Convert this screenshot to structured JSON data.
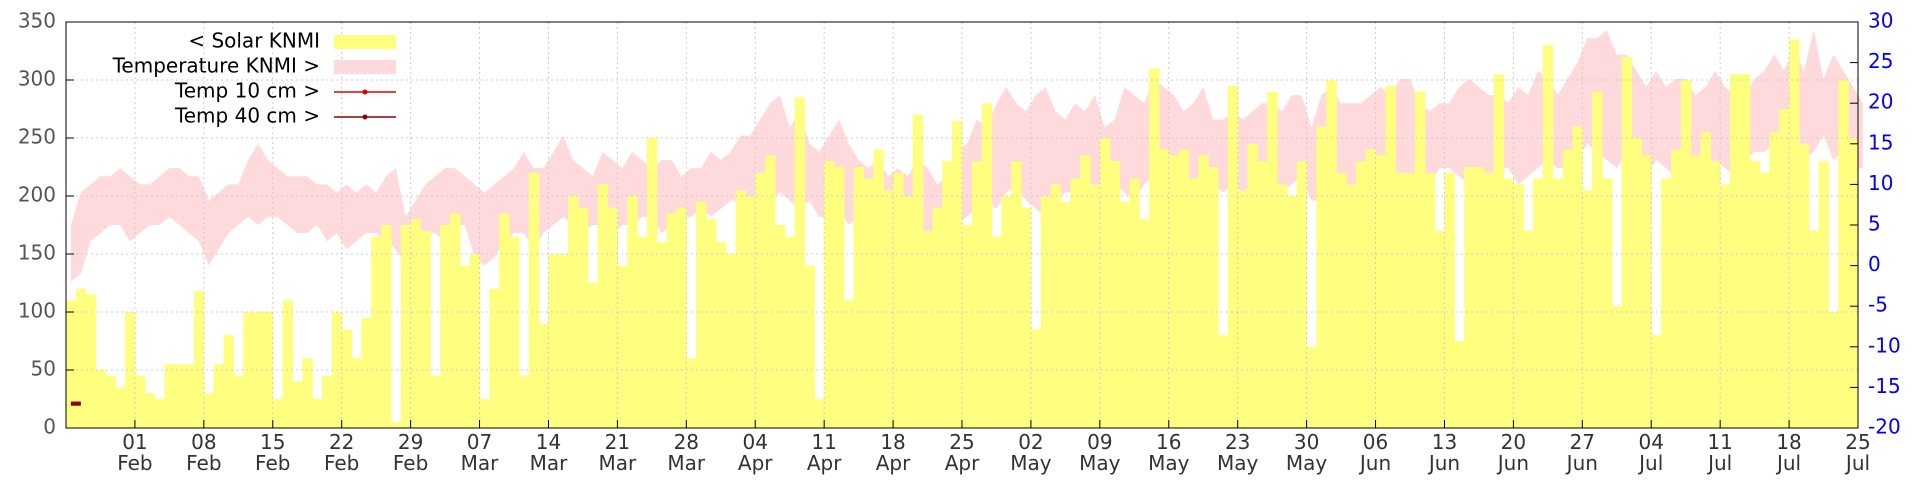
{
  "chart_data": {
    "type": "bar",
    "ylim": [
      0,
      350
    ],
    "yticks": [
      0,
      50,
      100,
      150,
      200,
      250,
      300,
      350
    ],
    "y2lim": [
      -20,
      30
    ],
    "y2ticks": [
      -20,
      -15,
      -10,
      -5,
      0,
      5,
      10,
      15,
      20,
      25,
      30
    ],
    "grid": true,
    "legend": "top-left",
    "categories": [
      null,
      null,
      null,
      null,
      null,
      null,
      null,
      "01 Feb",
      null,
      null,
      null,
      null,
      null,
      null,
      "08 Feb",
      null,
      null,
      null,
      null,
      null,
      null,
      "15 Feb",
      null,
      null,
      null,
      null,
      null,
      null,
      "22 Feb",
      null,
      null,
      null,
      null,
      null,
      null,
      "29 Feb",
      null,
      null,
      null,
      null,
      null,
      null,
      "07 Mar",
      null,
      null,
      null,
      null,
      null,
      null,
      "14 Mar",
      null,
      null,
      null,
      null,
      null,
      null,
      "21 Mar",
      null,
      null,
      null,
      null,
      null,
      null,
      "28 Mar",
      null,
      null,
      null,
      null,
      null,
      null,
      "04 Apr",
      null,
      null,
      null,
      null,
      null,
      null,
      "11 Apr",
      null,
      null,
      null,
      null,
      null,
      null,
      "18 Apr",
      null,
      null,
      null,
      null,
      null,
      null,
      "25 Apr",
      null,
      null,
      null,
      null,
      null,
      null,
      "02 May",
      null,
      null,
      null,
      null,
      null,
      null,
      "09 May",
      null,
      null,
      null,
      null,
      null,
      null,
      "16 May",
      null,
      null,
      null,
      null,
      null,
      null,
      "23 May",
      null,
      null,
      null,
      null,
      null,
      null,
      "30 May",
      null,
      null,
      null,
      null,
      null,
      null,
      "06 Jun",
      null,
      null,
      null,
      null,
      null,
      null,
      "13 Jun",
      null,
      null,
      null,
      null,
      null,
      null,
      "20 Jun",
      null,
      null,
      null,
      null,
      null,
      null,
      "27 Jun",
      null,
      null,
      null,
      null,
      null,
      null,
      "04 Jul",
      null,
      null,
      null,
      null,
      null,
      null,
      "11 Jul",
      null,
      null,
      null,
      null,
      null,
      null,
      "18 Jul",
      null,
      null,
      null,
      null,
      null,
      null,
      "25 Jul"
    ],
    "series": [
      {
        "name": "< Solar KNMI",
        "type": "bar",
        "color": "#ffff7f",
        "axis": "y",
        "values": [
          110,
          120,
          115,
          50,
          45,
          35,
          100,
          45,
          30,
          25,
          55,
          55,
          55,
          118,
          30,
          55,
          80,
          45,
          100,
          100,
          100,
          25,
          110,
          40,
          60,
          25,
          45,
          100,
          85,
          60,
          95,
          165,
          175,
          5,
          175,
          180,
          170,
          45,
          175,
          185,
          140,
          150,
          25,
          120,
          185,
          165,
          45,
          220,
          90,
          150,
          150,
          200,
          190,
          125,
          210,
          190,
          140,
          200,
          165,
          250,
          160,
          185,
          190,
          60,
          195,
          180,
          160,
          150,
          205,
          200,
          220,
          235,
          175,
          165,
          285,
          140,
          25,
          230,
          225,
          110,
          225,
          215,
          240,
          205,
          220,
          200,
          270,
          170,
          190,
          230,
          265,
          175,
          230,
          280,
          165,
          200,
          230,
          190,
          85,
          200,
          210,
          195,
          215,
          235,
          210,
          250,
          230,
          195,
          215,
          180,
          310,
          240,
          235,
          240,
          215,
          235,
          225,
          80,
          295,
          205,
          245,
          230,
          290,
          210,
          200,
          230,
          70,
          260,
          300,
          220,
          210,
          230,
          240,
          235,
          295,
          220,
          220,
          290,
          220,
          170,
          220,
          75,
          225,
          225,
          220,
          305,
          215,
          210,
          170,
          215,
          330,
          215,
          240,
          260,
          205,
          290,
          215,
          105,
          320,
          250,
          235,
          80,
          215,
          240,
          300,
          235,
          255,
          230,
          210,
          305,
          305,
          230,
          220,
          255,
          275,
          335,
          245,
          170,
          230,
          100,
          300,
          250,
          null
        ]
      },
      {
        "name": "Temperature KNMI >",
        "type": "band",
        "color": "#ffdadd",
        "axis": "y2",
        "low": [
          -2,
          -1,
          3,
          4,
          5,
          5,
          3,
          4,
          5,
          5,
          6,
          5,
          4,
          3,
          0,
          2,
          4,
          5,
          6,
          5,
          6,
          6,
          5,
          4,
          4,
          5,
          3,
          4,
          2,
          3,
          4,
          4,
          3,
          2,
          0,
          3,
          4,
          4,
          3,
          5,
          5,
          1,
          0,
          1,
          3,
          4,
          4,
          2,
          4,
          5,
          6,
          5,
          4,
          5,
          5,
          4,
          5,
          5,
          6,
          6,
          4,
          5,
          6,
          6,
          7,
          6,
          7,
          8,
          8,
          8,
          9,
          8,
          9,
          8,
          7,
          8,
          6,
          6,
          7,
          5,
          6,
          5,
          4,
          3,
          4,
          3,
          2,
          3,
          2,
          1,
          5,
          6,
          7,
          8,
          7,
          9,
          10,
          8,
          7,
          6,
          8,
          9,
          9,
          8,
          9,
          9,
          10,
          9,
          8,
          10,
          11,
          10,
          11,
          9,
          9,
          10,
          10,
          9,
          10,
          9,
          10,
          11,
          10,
          9,
          10,
          11,
          8,
          8,
          6,
          5,
          6,
          7,
          8,
          9,
          10,
          10,
          9,
          11,
          10,
          12,
          12,
          11,
          10,
          10,
          11,
          12,
          12,
          10,
          11,
          12,
          13,
          12,
          12,
          13,
          15,
          14,
          13,
          12,
          14,
          13,
          11,
          13,
          12,
          11,
          12,
          13,
          12,
          13,
          12,
          11,
          13,
          14,
          14,
          15,
          14,
          15,
          13,
          14,
          16,
          13,
          14,
          12,
          12
        ],
        "high": [
          5,
          9,
          10,
          11,
          11,
          12,
          11,
          10,
          10,
          11,
          12,
          12,
          11,
          11,
          8,
          9,
          10,
          10,
          13,
          15,
          13,
          12,
          11,
          11,
          11,
          10,
          10,
          9,
          10,
          9,
          10,
          9,
          11,
          12,
          6,
          8,
          10,
          11,
          12,
          12,
          11,
          10,
          9,
          10,
          11,
          12,
          14,
          12,
          12,
          14,
          16,
          13,
          12,
          11,
          14,
          13,
          12,
          14,
          13,
          12,
          13,
          13,
          11,
          12,
          12,
          14,
          13,
          14,
          16,
          16,
          18,
          20,
          21,
          17,
          19,
          15,
          14,
          16,
          18,
          15,
          13,
          12,
          13,
          11,
          12,
          11,
          13,
          12,
          10,
          11,
          14,
          15,
          18,
          17,
          20,
          22,
          20,
          19,
          21,
          22,
          19,
          18,
          20,
          19,
          21,
          17,
          18,
          22,
          21,
          20,
          23,
          22,
          21,
          19,
          20,
          22,
          18,
          18,
          19,
          18,
          19,
          20,
          20,
          19,
          21,
          21,
          17,
          21,
          22,
          20,
          20,
          20,
          21,
          22,
          21,
          23,
          23,
          20,
          19,
          20,
          20,
          22,
          23,
          22,
          21,
          21,
          20,
          22,
          21,
          24,
          23,
          21,
          23,
          25,
          28,
          28,
          29,
          26,
          26,
          24,
          22,
          24,
          22,
          23,
          23,
          21,
          22,
          24,
          22,
          21,
          21,
          23,
          24,
          26,
          24,
          27,
          24,
          29,
          23,
          26,
          24,
          22,
          20
        ]
      },
      {
        "name": "Temp 10 cm >",
        "type": "line",
        "color": "#e00000",
        "axis": "y2",
        "values": [
          -17,
          -17,
          null,
          null,
          null,
          null,
          null,
          null,
          null,
          null,
          null,
          null,
          null,
          null,
          null,
          null,
          null,
          null,
          null,
          null,
          null,
          null,
          null,
          null,
          null,
          null,
          null,
          null,
          null,
          null,
          null,
          null,
          null,
          null,
          null,
          null,
          null,
          null,
          null,
          null,
          null,
          null,
          null,
          null,
          null,
          null,
          null,
          null,
          null,
          null,
          null,
          null,
          null,
          null,
          null,
          null,
          null,
          null,
          null,
          null,
          null,
          null,
          null,
          null,
          null,
          null,
          null,
          null,
          null,
          null,
          null,
          null,
          null,
          null,
          null,
          null,
          null,
          null,
          null,
          null,
          null,
          null,
          null,
          null,
          null,
          null,
          null,
          null,
          null,
          null,
          null,
          null,
          null,
          null,
          null,
          null,
          null,
          null,
          null,
          null,
          null,
          null,
          null,
          null,
          null,
          null,
          null,
          null,
          null,
          null,
          null,
          null,
          null,
          null,
          null,
          null,
          null,
          null,
          null,
          null,
          null,
          null,
          null,
          null,
          null,
          null,
          null,
          null,
          null,
          null,
          null,
          null,
          null,
          null,
          null,
          null,
          null,
          null,
          null,
          null,
          null,
          null,
          null,
          null,
          null,
          null,
          null,
          null,
          null,
          null,
          null,
          null,
          null,
          null,
          null,
          null,
          null,
          null,
          null,
          null,
          null,
          null,
          null,
          null,
          null,
          null,
          null,
          null,
          null,
          null,
          null,
          null,
          null,
          null,
          null,
          null,
          null,
          null,
          null,
          null,
          null,
          null,
          null
        ]
      },
      {
        "name": "Temp 40 cm >",
        "type": "line",
        "color": "#900000",
        "axis": "y2",
        "values": [
          -17,
          -17,
          null,
          null,
          null,
          null,
          null,
          null,
          null,
          null,
          null,
          null,
          null,
          null,
          null,
          null,
          null,
          null,
          null,
          null,
          null,
          null,
          null,
          null,
          null,
          null,
          null,
          null,
          null,
          null,
          null,
          null,
          null,
          null,
          null,
          null,
          null,
          null,
          null,
          null,
          null,
          null,
          null,
          null,
          null,
          null,
          null,
          null,
          null,
          null,
          null,
          null,
          null,
          null,
          null,
          null,
          null,
          null,
          null,
          null,
          null,
          null,
          null,
          null,
          null,
          null,
          null,
          null,
          null,
          null,
          null,
          null,
          null,
          null,
          null,
          null,
          null,
          null,
          null,
          null,
          null,
          null,
          null,
          null,
          null,
          null,
          null,
          null,
          null,
          null,
          null,
          null,
          null,
          null,
          null,
          null,
          null,
          null,
          null,
          null,
          null,
          null,
          null,
          null,
          null,
          null,
          null,
          null,
          null,
          null,
          null,
          null,
          null,
          null,
          null,
          null,
          null,
          null,
          null,
          null,
          null,
          null,
          null,
          null,
          null,
          null,
          null,
          null,
          null,
          null,
          null,
          null,
          null,
          null,
          null,
          null,
          null,
          null,
          null,
          null,
          null,
          null,
          null,
          null,
          null,
          null,
          null,
          null,
          null,
          null,
          null,
          null,
          null,
          null,
          null,
          null,
          null,
          null,
          null,
          null,
          null,
          null,
          null,
          null,
          null,
          null,
          null,
          null,
          null,
          null,
          null,
          null,
          null,
          null,
          null,
          null,
          null,
          null,
          null,
          null,
          null,
          null,
          null
        ]
      }
    ]
  }
}
